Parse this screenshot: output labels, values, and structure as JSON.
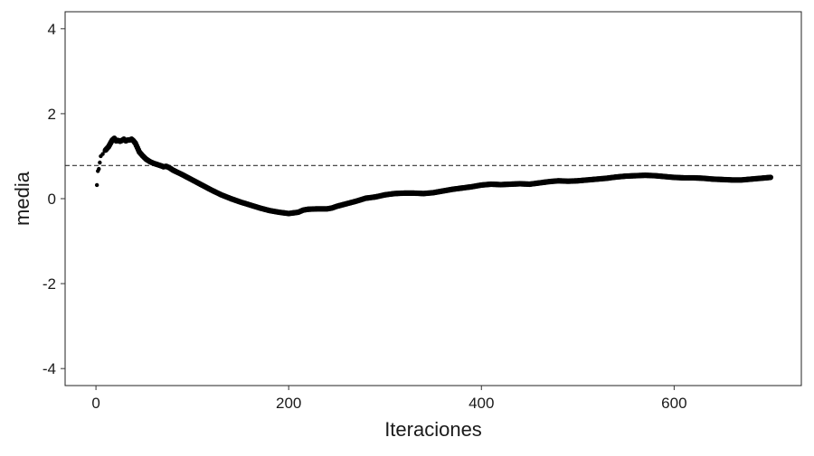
{
  "chart_data": {
    "type": "scatter",
    "title": "",
    "xlabel": "Iteraciones",
    "ylabel": "media",
    "xlim": [
      -32,
      732
    ],
    "ylim": [
      -4.4,
      4.4
    ],
    "x_ticks": [
      0,
      200,
      400,
      600
    ],
    "y_ticks": [
      -4,
      -2,
      0,
      2,
      4
    ],
    "x_tick_labels": [
      "0",
      "200",
      "400",
      "600"
    ],
    "y_tick_labels": [
      "-4",
      "-2",
      "0",
      "2",
      "4"
    ],
    "grid": false,
    "legend": "none",
    "reference_line": {
      "y": 0.78,
      "style": "dashed",
      "color": "#333333"
    },
    "series": [
      {
        "color": "#000000",
        "points": [
          [
            1,
            0.32
          ],
          [
            2,
            0.65
          ],
          [
            3,
            0.7
          ],
          [
            4,
            0.85
          ],
          [
            5,
            1.0
          ],
          [
            7,
            1.05
          ],
          [
            9,
            1.12
          ],
          [
            11,
            1.17
          ],
          [
            13,
            1.22
          ],
          [
            15,
            1.3
          ],
          [
            17,
            1.38
          ],
          [
            19,
            1.42
          ],
          [
            21,
            1.36
          ],
          [
            23,
            1.37
          ],
          [
            25,
            1.35
          ],
          [
            27,
            1.37
          ],
          [
            29,
            1.4
          ],
          [
            31,
            1.36
          ],
          [
            33,
            1.38
          ],
          [
            35,
            1.38
          ],
          [
            37,
            1.4
          ],
          [
            39,
            1.36
          ],
          [
            41,
            1.3
          ],
          [
            43,
            1.2
          ],
          [
            45,
            1.1
          ],
          [
            48,
            1.02
          ],
          [
            52,
            0.93
          ],
          [
            56,
            0.87
          ],
          [
            60,
            0.83
          ],
          [
            64,
            0.8
          ],
          [
            68,
            0.77
          ],
          [
            70,
            0.75
          ],
          [
            73,
            0.76
          ],
          [
            76,
            0.73
          ],
          [
            80,
            0.67
          ],
          [
            90,
            0.56
          ],
          [
            100,
            0.44
          ],
          [
            110,
            0.32
          ],
          [
            120,
            0.2
          ],
          [
            130,
            0.09
          ],
          [
            140,
            0.0
          ],
          [
            150,
            -0.08
          ],
          [
            160,
            -0.15
          ],
          [
            170,
            -0.22
          ],
          [
            180,
            -0.28
          ],
          [
            190,
            -0.32
          ],
          [
            200,
            -0.35
          ],
          [
            210,
            -0.32
          ],
          [
            215,
            -0.27
          ],
          [
            220,
            -0.25
          ],
          [
            230,
            -0.24
          ],
          [
            240,
            -0.24
          ],
          [
            245,
            -0.22
          ],
          [
            250,
            -0.18
          ],
          [
            260,
            -0.12
          ],
          [
            270,
            -0.06
          ],
          [
            280,
            0.01
          ],
          [
            290,
            0.04
          ],
          [
            300,
            0.09
          ],
          [
            310,
            0.12
          ],
          [
            320,
            0.13
          ],
          [
            330,
            0.13
          ],
          [
            340,
            0.12
          ],
          [
            350,
            0.14
          ],
          [
            360,
            0.18
          ],
          [
            370,
            0.22
          ],
          [
            380,
            0.25
          ],
          [
            390,
            0.28
          ],
          [
            400,
            0.32
          ],
          [
            410,
            0.34
          ],
          [
            420,
            0.33
          ],
          [
            430,
            0.34
          ],
          [
            440,
            0.35
          ],
          [
            450,
            0.34
          ],
          [
            460,
            0.37
          ],
          [
            470,
            0.4
          ],
          [
            480,
            0.42
          ],
          [
            490,
            0.41
          ],
          [
            500,
            0.42
          ],
          [
            510,
            0.44
          ],
          [
            520,
            0.46
          ],
          [
            530,
            0.48
          ],
          [
            540,
            0.51
          ],
          [
            550,
            0.53
          ],
          [
            560,
            0.54
          ],
          [
            570,
            0.55
          ],
          [
            580,
            0.54
          ],
          [
            590,
            0.52
          ],
          [
            600,
            0.5
          ],
          [
            610,
            0.49
          ],
          [
            620,
            0.49
          ],
          [
            630,
            0.48
          ],
          [
            640,
            0.46
          ],
          [
            650,
            0.45
          ],
          [
            660,
            0.44
          ],
          [
            670,
            0.44
          ],
          [
            680,
            0.46
          ],
          [
            690,
            0.48
          ],
          [
            700,
            0.5
          ]
        ]
      }
    ]
  }
}
